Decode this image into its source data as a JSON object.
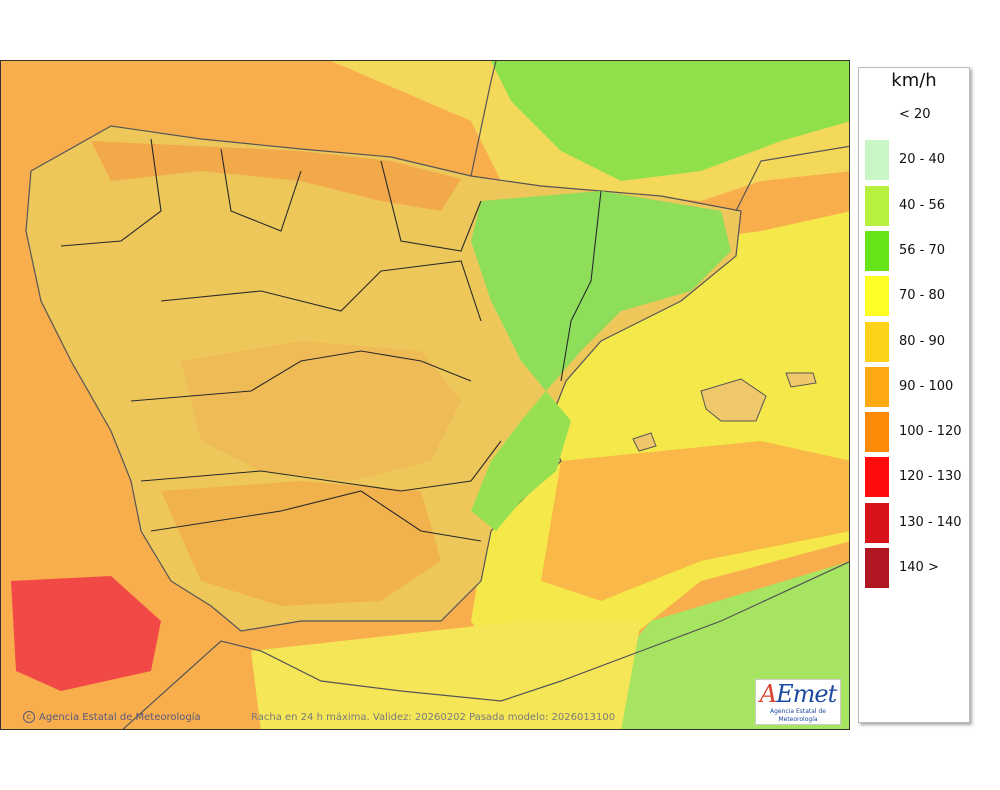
{
  "map": {
    "credit": "Agencia Estatal de Meteorología",
    "caption": "Racha en 24 h máxima. Validez: 20260202 Pasada modelo: 2026013100",
    "logo": {
      "brand_a": "A",
      "brand_rest": "Emet",
      "subtitle": "Agencia Estatal de Meteorología"
    }
  },
  "legend": {
    "unit": "km/h",
    "classes": [
      {
        "label": "< 20",
        "color": "#ffffff"
      },
      {
        "label": "20 - 40",
        "color": "#c8f7c5"
      },
      {
        "label": "40 - 56",
        "color": "#b8f040"
      },
      {
        "label": "56 - 70",
        "color": "#66e61a"
      },
      {
        "label": "70 - 80",
        "color": "#ffff26"
      },
      {
        "label": "80 - 90",
        "color": "#ffd21a"
      },
      {
        "label": "90 - 100",
        "color": "#ffaa14"
      },
      {
        "label": "100 - 120",
        "color": "#ff8a0a"
      },
      {
        "label": "120 - 130",
        "color": "#ff0d0d"
      },
      {
        "label": "130 - 140",
        "color": "#d8141a"
      },
      {
        "label": "140 >",
        "color": "#b01722"
      }
    ]
  }
}
